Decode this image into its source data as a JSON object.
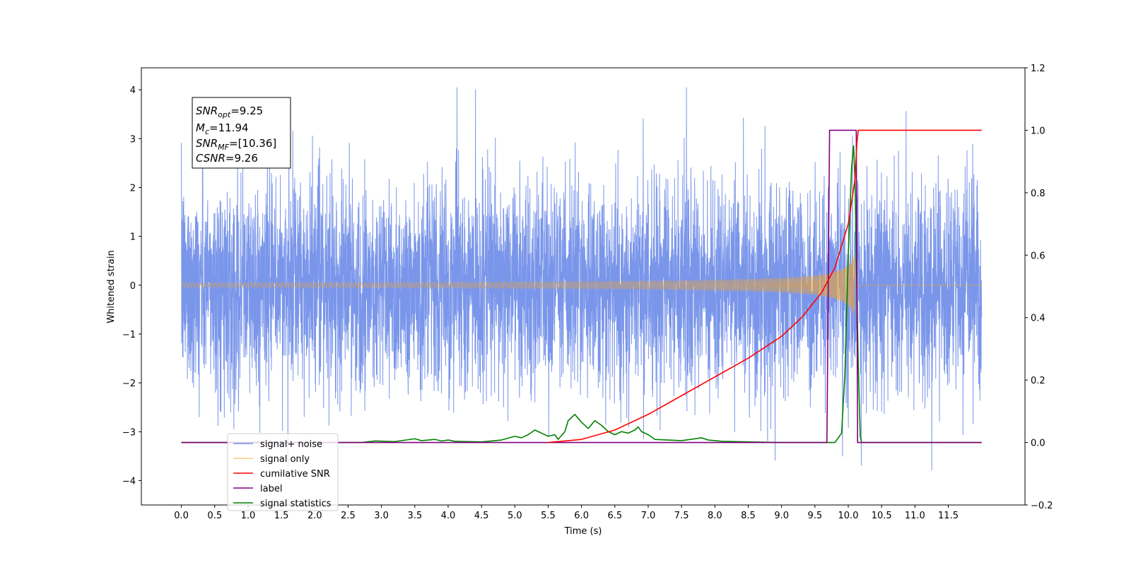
{
  "chart_data": {
    "type": "line",
    "title": "",
    "xlabel": "Time (s)",
    "ylabel": "Whitened strain",
    "xlim": [
      -0.6,
      12.65
    ],
    "ylim": [
      -4.5,
      4.45
    ],
    "ylim_right": [
      -0.2,
      1.2
    ],
    "x_ticks": [
      "0.0",
      "0.5",
      "1.0",
      "1.5",
      "2.0",
      "2.5",
      "3.0",
      "3.5",
      "4.0",
      "4.5",
      "5.0",
      "5.5",
      "6.0",
      "6.5",
      "7.0",
      "7.5",
      "8.0",
      "8.5",
      "9.0",
      "9.5",
      "10.0",
      "10.5",
      "11.0",
      "11.5"
    ],
    "y_ticks_left": [
      "−4",
      "−3",
      "−2",
      "−1",
      "0",
      "1",
      "2",
      "3",
      "4"
    ],
    "y_ticks_right": [
      "−0.2",
      "0.0",
      "0.2",
      "0.4",
      "0.6",
      "0.8",
      "1.0",
      "1.2"
    ],
    "legend_placement": "lower-left",
    "grid": false,
    "info_box": {
      "snr_opt": {
        "main": "SNR",
        "sub": "opt",
        "value": "=9.25"
      },
      "mc": {
        "main": "M",
        "sub": "c",
        "value": "=11.94"
      },
      "snr_mf": {
        "main": "SNR",
        "sub": "MF",
        "value": "=[10.36]"
      },
      "csnr": {
        "main": "CSNR",
        "value": "=9.26"
      }
    },
    "series": [
      {
        "name": "signal+ noise",
        "axis": "left",
        "color": "#4169e1",
        "style": "noise",
        "x_range": [
          0.0,
          12.0
        ],
        "amplitude_std": 1.0,
        "peak_max": 4.05,
        "peak_min": -4.1
      },
      {
        "name": "signal only",
        "axis": "left",
        "color": "#f5a623",
        "style": "chirp",
        "x_range": [
          0.0,
          12.0
        ],
        "merger_time": 10.1,
        "peak_amplitude": 0.75
      },
      {
        "name": "cumilative SNR",
        "axis": "right",
        "color": "#ff0000",
        "x": [
          5.5,
          6.0,
          6.5,
          7.0,
          7.5,
          8.0,
          8.5,
          9.0,
          9.3,
          9.6,
          9.8,
          10.0,
          10.1,
          10.13,
          10.15,
          10.2,
          12.0
        ],
        "y": [
          0.0,
          0.01,
          0.04,
          0.09,
          0.15,
          0.21,
          0.27,
          0.34,
          0.4,
          0.48,
          0.56,
          0.7,
          0.84,
          0.96,
          1.0,
          1.0,
          1.0
        ]
      },
      {
        "name": "label",
        "axis": "right",
        "color": "#800080",
        "x": [
          0.0,
          9.68,
          9.72,
          10.12,
          10.14,
          12.0
        ],
        "y": [
          0.0,
          0.0,
          1.0,
          1.0,
          0.0,
          0.0
        ]
      },
      {
        "name": "signal statistics",
        "axis": "right",
        "color": "#008000",
        "x": [
          0.0,
          2.7,
          2.9,
          3.2,
          3.5,
          3.6,
          3.8,
          3.9,
          4.0,
          4.1,
          4.3,
          4.5,
          4.8,
          5.0,
          5.1,
          5.2,
          5.3,
          5.4,
          5.5,
          5.6,
          5.65,
          5.75,
          5.8,
          5.9,
          6.0,
          6.1,
          6.2,
          6.3,
          6.4,
          6.5,
          6.6,
          6.7,
          6.8,
          6.85,
          6.9,
          7.0,
          7.1,
          7.5,
          7.8,
          7.9,
          8.1,
          8.5,
          9.0,
          9.5,
          9.8,
          9.9,
          9.95,
          10.0,
          10.05,
          10.08,
          10.1,
          10.12,
          10.15,
          10.18,
          10.2,
          10.4,
          11.0,
          12.0
        ],
        "y": [
          0.0,
          0.0,
          0.005,
          0.003,
          0.012,
          0.006,
          0.01,
          0.005,
          0.008,
          0.004,
          0.003,
          0.002,
          0.008,
          0.02,
          0.015,
          0.025,
          0.04,
          0.03,
          0.02,
          0.025,
          0.01,
          0.035,
          0.07,
          0.09,
          0.065,
          0.045,
          0.07,
          0.055,
          0.035,
          0.025,
          0.035,
          0.03,
          0.04,
          0.05,
          0.035,
          0.025,
          0.01,
          0.006,
          0.015,
          0.008,
          0.004,
          0.002,
          0.0,
          0.0,
          0.0,
          0.03,
          0.22,
          0.6,
          0.88,
          0.95,
          0.85,
          0.6,
          0.25,
          0.02,
          0.0,
          0.0,
          0.0,
          0.0
        ]
      }
    ]
  }
}
